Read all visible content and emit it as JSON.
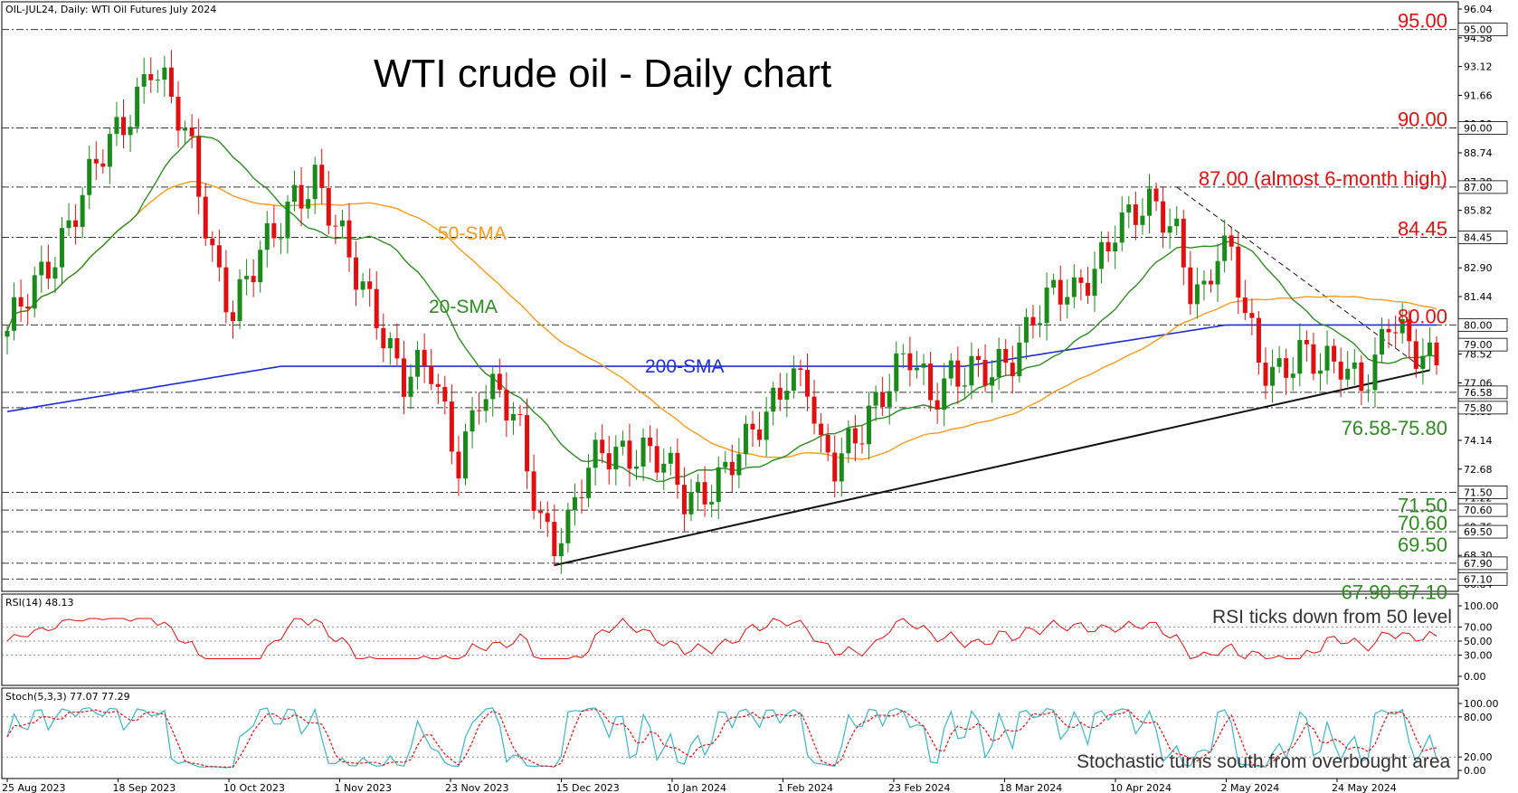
{
  "header": {
    "symbol_info": "OIL-JUL24, Daily:  WTI Oil Futures July 2024",
    "title": "WTI crude oil - Daily chart"
  },
  "colors": {
    "bull": "#1a8a1a",
    "bear": "#e01010",
    "sma20": "#2e8b22",
    "sma50": "#f59b1c",
    "sma200": "#1f2fd6",
    "level_red": "#e01010",
    "level_green": "#2e8b22",
    "rsi": "#e01010",
    "stoch_k": "#3cb4c8",
    "stoch_d": "#e01010"
  },
  "chart_data": [
    {
      "type": "candlestick",
      "name": "price",
      "y_ticks": [
        "96.04",
        "94.58",
        "93.12",
        "91.66",
        "90.20",
        "88.74",
        "87.28",
        "85.82",
        "84.36",
        "82.90",
        "81.44",
        "79.98",
        "78.52",
        "77.06",
        "75.60",
        "74.14",
        "72.68",
        "71.22",
        "69.76",
        "68.30",
        "66.84"
      ],
      "ylim": [
        66.84,
        96.04
      ],
      "x_ticks": [
        "25 Aug 2023",
        "18 Sep 2023",
        "10 Oct 2023",
        "1 Nov 2023",
        "23 Nov 2023",
        "15 Dec 2023",
        "10 Jan 2024",
        "1 Feb 2024",
        "23 Feb 2024",
        "18 Mar 2024",
        "10 Apr 2024",
        "2 May 2024",
        "24 May 2024"
      ],
      "key_points": [
        {
          "i": 0,
          "close": 79.2
        },
        {
          "i": 6,
          "close": 83.5
        },
        {
          "i": 12,
          "close": 87.0
        },
        {
          "i": 17,
          "close": 90.5
        },
        {
          "i": 21,
          "close": 93.5
        },
        {
          "i": 24,
          "close": 91.0
        },
        {
          "i": 27,
          "close": 88.5
        },
        {
          "i": 30,
          "close": 84.0
        },
        {
          "i": 33,
          "close": 80.8
        },
        {
          "i": 36,
          "close": 82.5
        },
        {
          "i": 39,
          "close": 84.5
        },
        {
          "i": 42,
          "close": 87.0
        },
        {
          "i": 45,
          "close": 87.5
        },
        {
          "i": 48,
          "close": 84.5
        },
        {
          "i": 51,
          "close": 82.5
        },
        {
          "i": 54,
          "close": 81.0
        },
        {
          "i": 58,
          "close": 77.0
        },
        {
          "i": 62,
          "close": 77.5
        },
        {
          "i": 66,
          "close": 73.5
        },
        {
          "i": 69,
          "close": 76.5
        },
        {
          "i": 72,
          "close": 76.0
        },
        {
          "i": 75,
          "close": 74.5
        },
        {
          "i": 78,
          "close": 70.5
        },
        {
          "i": 80,
          "close": 69.3
        },
        {
          "i": 82,
          "close": 69.5
        },
        {
          "i": 84,
          "close": 71.5
        },
        {
          "i": 87,
          "close": 73.7
        },
        {
          "i": 90,
          "close": 74.0
        },
        {
          "i": 93,
          "close": 73.5
        },
        {
          "i": 96,
          "close": 72.5
        },
        {
          "i": 99,
          "close": 71.3
        },
        {
          "i": 102,
          "close": 72.0
        },
        {
          "i": 105,
          "close": 72.5
        },
        {
          "i": 108,
          "close": 73.5
        },
        {
          "i": 111,
          "close": 75.5
        },
        {
          "i": 114,
          "close": 78.0
        },
        {
          "i": 117,
          "close": 77.0
        },
        {
          "i": 119,
          "close": 73.0
        },
        {
          "i": 121,
          "close": 72.5
        },
        {
          "i": 123,
          "close": 74.0
        },
        {
          "i": 126,
          "close": 76.0
        },
        {
          "i": 129,
          "close": 77.0
        },
        {
          "i": 132,
          "close": 78.0
        },
        {
          "i": 135,
          "close": 76.5
        },
        {
          "i": 138,
          "close": 78.0
        },
        {
          "i": 141,
          "close": 77.5
        },
        {
          "i": 144,
          "close": 77.0
        },
        {
          "i": 147,
          "close": 78.5
        },
        {
          "i": 150,
          "close": 81.0
        },
        {
          "i": 153,
          "close": 81.5
        },
        {
          "i": 156,
          "close": 81.0
        },
        {
          "i": 159,
          "close": 83.0
        },
        {
          "i": 162,
          "close": 85.5
        },
        {
          "i": 165,
          "close": 85.5
        },
        {
          "i": 168,
          "close": 85.5
        },
        {
          "i": 171,
          "close": 84.8
        },
        {
          "i": 173,
          "close": 82.5
        },
        {
          "i": 175,
          "close": 81.8
        },
        {
          "i": 177,
          "close": 83.5
        },
        {
          "i": 179,
          "close": 83.0
        },
        {
          "i": 181,
          "close": 80.5
        },
        {
          "i": 183,
          "close": 78.5
        },
        {
          "i": 186,
          "close": 78.0
        },
        {
          "i": 189,
          "close": 78.2
        },
        {
          "i": 192,
          "close": 77.5
        },
        {
          "i": 195,
          "close": 78.5
        },
        {
          "i": 198,
          "close": 77.5
        },
        {
          "i": 200,
          "close": 77.8
        },
        {
          "i": 202,
          "close": 79.8
        },
        {
          "i": 204,
          "close": 79.0
        },
        {
          "i": 205,
          "close": 78.8
        }
      ],
      "sma_labels": {
        "sma20": "20-SMA",
        "sma50": "50-SMA",
        "sma200": "200-SMA"
      },
      "levels": [
        {
          "value": 95.0,
          "label": "95.00",
          "tag": "95.00",
          "color": "level_red"
        },
        {
          "value": 90.0,
          "label": "90.00",
          "tag": "90.00",
          "color": "level_red"
        },
        {
          "value": 87.0,
          "label": "87.00 (almost 6-month high)",
          "tag": "87.00",
          "color": "level_red"
        },
        {
          "value": 84.45,
          "label": "84.45",
          "tag": "84.45",
          "color": "level_red"
        },
        {
          "value": 80.0,
          "label": "80.00",
          "tag": "80.00",
          "color": "level_red"
        },
        {
          "value": 76.58,
          "label": "",
          "tag": "76.58",
          "color": "level_green"
        },
        {
          "value": 75.8,
          "label": "76.58-75.80",
          "tag": "75.80",
          "color": "level_green"
        },
        {
          "value": 71.5,
          "label": "71.50",
          "tag": "71.50",
          "color": "level_green"
        },
        {
          "value": 70.6,
          "label": "70.60",
          "tag": "70.60",
          "color": "level_green"
        },
        {
          "value": 69.5,
          "label": "69.50",
          "tag": "69.50",
          "color": "level_green"
        },
        {
          "value": 67.9,
          "label": "",
          "tag": "67.90",
          "color": "level_green"
        },
        {
          "value": 67.1,
          "label": "67.90-67.10",
          "tag": "67.10",
          "color": "level_green"
        }
      ],
      "current_price": "79.00",
      "trendlines": [
        {
          "from": {
            "i": 80,
            "v": 67.8
          },
          "to": {
            "i": 208,
            "v": 77.7
          }
        },
        {
          "from": {
            "i": 171,
            "v": 87.0
          },
          "to": {
            "i": 207,
            "v": 77.8
          }
        }
      ]
    },
    {
      "type": "line",
      "name": "rsi",
      "title": "RSI(14) 48.13",
      "y_ticks": [
        "100.00",
        "70.00",
        "50.00",
        "30.00",
        "0.00"
      ],
      "ylim": [
        0,
        100
      ],
      "levels": [
        70,
        50,
        30
      ],
      "annotation": "RSI ticks down from 50 level"
    },
    {
      "type": "line",
      "name": "stochastic",
      "title": "Stoch(5,3,3) 77.07 77.29",
      "y_ticks": [
        "100.00",
        "80.00",
        "20.00",
        "0.00"
      ],
      "ylim": [
        0,
        100
      ],
      "levels": [
        80,
        20
      ],
      "annotation": "Stochastic turns south from overbought area"
    }
  ]
}
